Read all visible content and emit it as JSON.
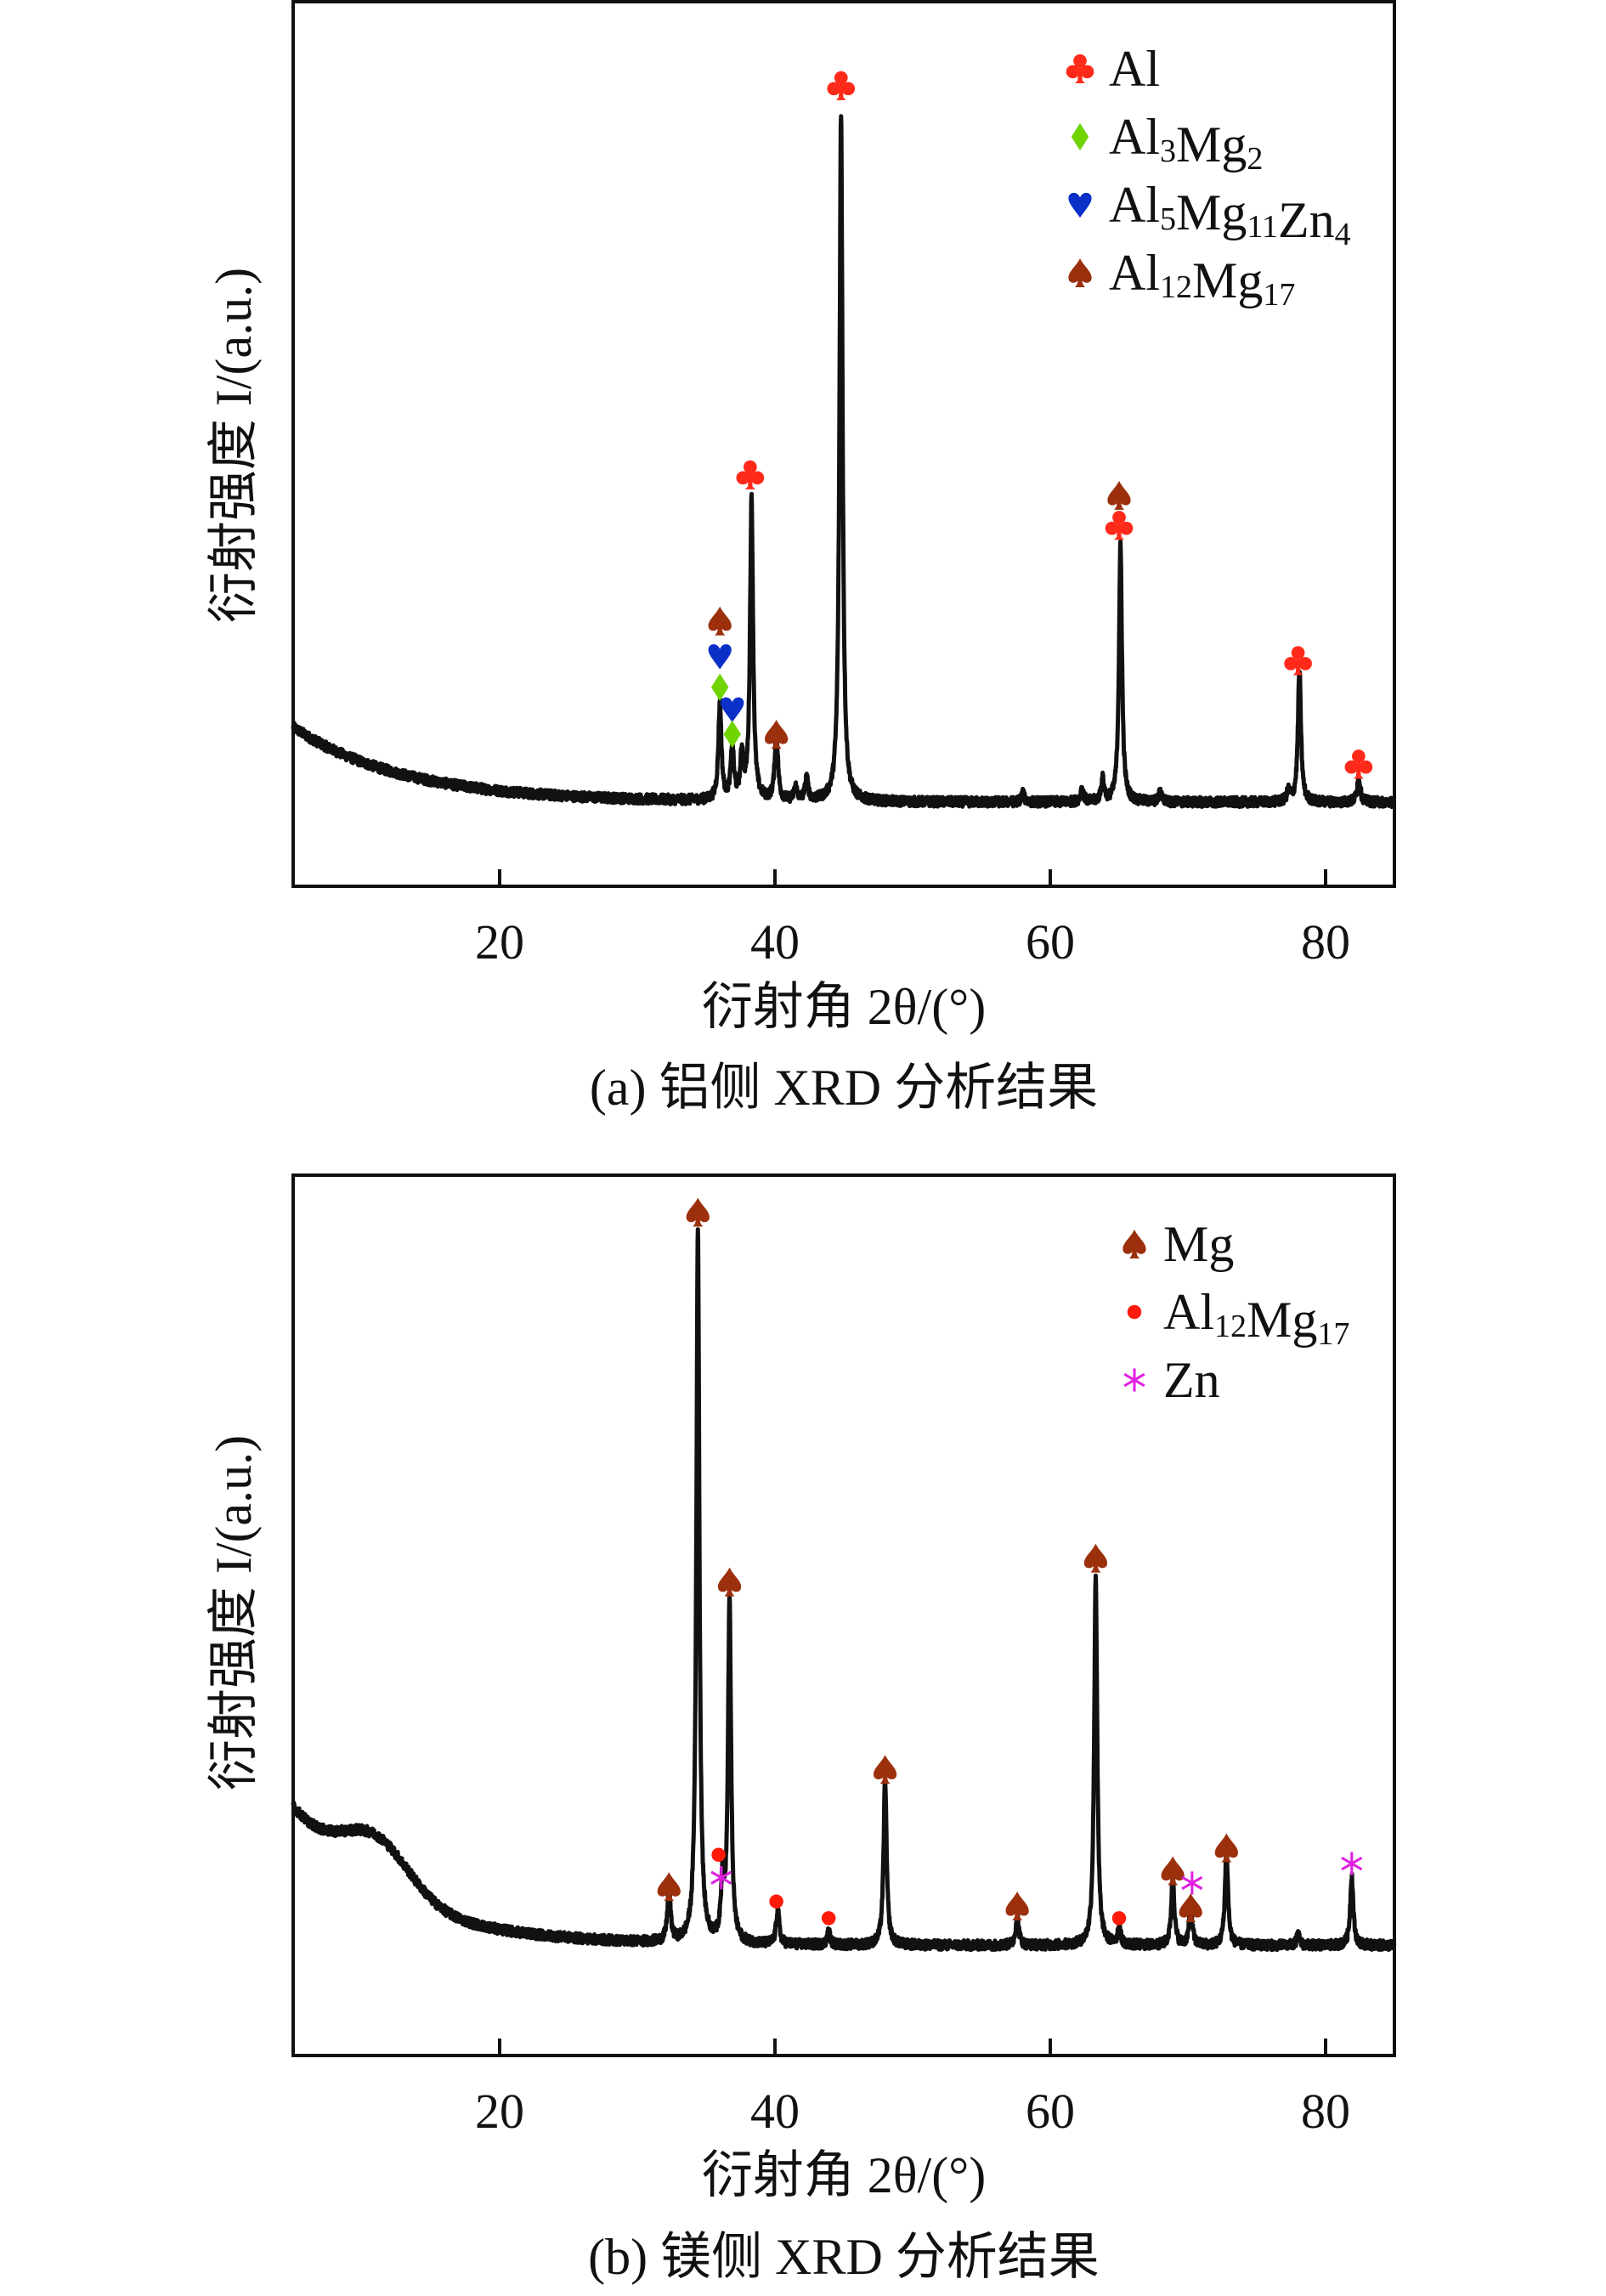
{
  "chart_data": [
    {
      "type": "line",
      "title": "",
      "caption": "(a) 铝侧 XRD 分析结果",
      "xlabel": "衍射角 2θ/(°)",
      "ylabel": "衍射强度 I/(a.u.)",
      "xlim": [
        5,
        85
      ],
      "ylim": [
        0,
        100
      ],
      "xticks": [
        20,
        40,
        60,
        80
      ],
      "grid": false,
      "legend_position": "top-right",
      "background": {
        "start": 18,
        "end": 9.5,
        "decay": 8
      },
      "peaks": [
        {
          "x": 36.0,
          "h": 11
        },
        {
          "x": 36.9,
          "h": 6
        },
        {
          "x": 37.6,
          "h": 5
        },
        {
          "x": 38.3,
          "h": 34
        },
        {
          "x": 40.1,
          "h": 8
        },
        {
          "x": 41.5,
          "h": 1.5
        },
        {
          "x": 42.3,
          "h": 2.5
        },
        {
          "x": 44.8,
          "h": 78
        },
        {
          "x": 58.0,
          "h": 1
        },
        {
          "x": 62.3,
          "h": 1.5
        },
        {
          "x": 63.8,
          "h": 2.5
        },
        {
          "x": 65.1,
          "h": 29
        },
        {
          "x": 68.0,
          "h": 1.2
        },
        {
          "x": 77.3,
          "h": 1.2
        },
        {
          "x": 78.1,
          "h": 15
        },
        {
          "x": 82.4,
          "h": 3
        }
      ],
      "legend": [
        {
          "phase": "Al",
          "symbol": "club",
          "parts": [
            [
              "Al",
              ""
            ]
          ]
        },
        {
          "phase": "Al3Mg2",
          "symbol": "diamond",
          "parts": [
            [
              "Al",
              "3"
            ],
            [
              "Mg",
              "2"
            ]
          ]
        },
        {
          "phase": "Al5Mg11Zn4",
          "symbol": "heart",
          "parts": [
            [
              "Al",
              "5"
            ],
            [
              "Mg",
              "11"
            ],
            [
              "Zn",
              "4"
            ]
          ]
        },
        {
          "phase": "Al12Mg17",
          "symbol": "spade",
          "parts": [
            [
              "Al",
              "12"
            ],
            [
              "Mg",
              "17"
            ]
          ]
        }
      ],
      "markers": [
        {
          "x": 44.8,
          "y": 90.5,
          "symbol": "club"
        },
        {
          "x": 38.2,
          "y": 46.5,
          "symbol": "club"
        },
        {
          "x": 65.0,
          "y": 44.2,
          "symbol": "spade"
        },
        {
          "x": 65.0,
          "y": 40.8,
          "symbol": "club"
        },
        {
          "x": 78.0,
          "y": 25.5,
          "symbol": "club"
        },
        {
          "x": 82.4,
          "y": 13.8,
          "symbol": "club"
        },
        {
          "x": 36.0,
          "y": 30.0,
          "symbol": "spade"
        },
        {
          "x": 36.0,
          "y": 26.0,
          "symbol": "heart"
        },
        {
          "x": 36.0,
          "y": 22.5,
          "symbol": "diamond"
        },
        {
          "x": 36.9,
          "y": 20.0,
          "symbol": "heart"
        },
        {
          "x": 36.9,
          "y": 17.2,
          "symbol": "diamond"
        },
        {
          "x": 40.1,
          "y": 17.2,
          "symbol": "spade"
        }
      ]
    },
    {
      "type": "line",
      "title": "",
      "caption": "(b) 镁侧 XRD 分析结果",
      "xlabel": "衍射角 2θ/(°)",
      "ylabel": "衍射强度 I/(a.u.)",
      "xlim": [
        5,
        85
      ],
      "ylim": [
        0,
        100
      ],
      "xticks": [
        20,
        40,
        60,
        80
      ],
      "grid": false,
      "legend_position": "top-right",
      "background": {
        "start": 28,
        "end": 12.5,
        "decay": 7
      },
      "hump": {
        "x": 11,
        "h": 6,
        "w": 3.5
      },
      "peaks": [
        {
          "x": 32.3,
          "h": 6
        },
        {
          "x": 34.4,
          "h": 81
        },
        {
          "x": 36.2,
          "h": 7
        },
        {
          "x": 36.7,
          "h": 39
        },
        {
          "x": 40.2,
          "h": 4
        },
        {
          "x": 43.9,
          "h": 1.5
        },
        {
          "x": 48.0,
          "h": 19
        },
        {
          "x": 57.6,
          "h": 3.5
        },
        {
          "x": 63.3,
          "h": 42
        },
        {
          "x": 65.0,
          "h": 2
        },
        {
          "x": 68.9,
          "h": 8
        },
        {
          "x": 70.2,
          "h": 4.5
        },
        {
          "x": 72.8,
          "h": 11
        },
        {
          "x": 78.0,
          "h": 1.2
        },
        {
          "x": 81.9,
          "h": 8
        }
      ],
      "legend": [
        {
          "phase": "Mg",
          "symbol": "spade",
          "parts": [
            [
              "Mg",
              ""
            ]
          ]
        },
        {
          "phase": "Al12Mg17",
          "symbol": "dot",
          "parts": [
            [
              "Al",
              "12"
            ],
            [
              "Mg",
              "17"
            ]
          ]
        },
        {
          "phase": "Zn",
          "symbol": "asterisk",
          "parts": [
            [
              "Zn",
              ""
            ]
          ]
        }
      ],
      "markers": [
        {
          "x": 34.4,
          "y": 95.8,
          "symbol": "spade"
        },
        {
          "x": 36.7,
          "y": 53.8,
          "symbol": "spade"
        },
        {
          "x": 48.0,
          "y": 32.5,
          "symbol": "spade"
        },
        {
          "x": 63.3,
          "y": 56.5,
          "symbol": "spade"
        },
        {
          "x": 32.3,
          "y": 19.2,
          "symbol": "spade"
        },
        {
          "x": 35.9,
          "y": 22.8,
          "symbol": "dot"
        },
        {
          "x": 36.1,
          "y": 20.2,
          "symbol": "asterisk"
        },
        {
          "x": 40.1,
          "y": 17.5,
          "symbol": "dot"
        },
        {
          "x": 43.9,
          "y": 15.6,
          "symbol": "dot"
        },
        {
          "x": 57.6,
          "y": 17.0,
          "symbol": "spade"
        },
        {
          "x": 65.0,
          "y": 15.6,
          "symbol": "dot"
        },
        {
          "x": 68.9,
          "y": 21.0,
          "symbol": "spade"
        },
        {
          "x": 70.3,
          "y": 19.6,
          "symbol": "asterisk"
        },
        {
          "x": 70.2,
          "y": 16.8,
          "symbol": "spade"
        },
        {
          "x": 72.8,
          "y": 23.6,
          "symbol": "spade"
        },
        {
          "x": 81.9,
          "y": 21.8,
          "symbol": "asterisk"
        }
      ]
    }
  ],
  "symbols": {
    "club": {
      "glyph": "♣",
      "color": "#ff2a1a"
    },
    "diamond": {
      "glyph": "♦",
      "color": "#6fd400"
    },
    "heart": {
      "glyph": "♥",
      "color": "#0a30c8"
    },
    "spade": {
      "glyph": "♠",
      "color": "#9c2f0c"
    },
    "dot": {
      "glyph": "●",
      "color": "#ff1a0a"
    },
    "asterisk": {
      "glyph": "*",
      "color": "#e020e0"
    }
  }
}
